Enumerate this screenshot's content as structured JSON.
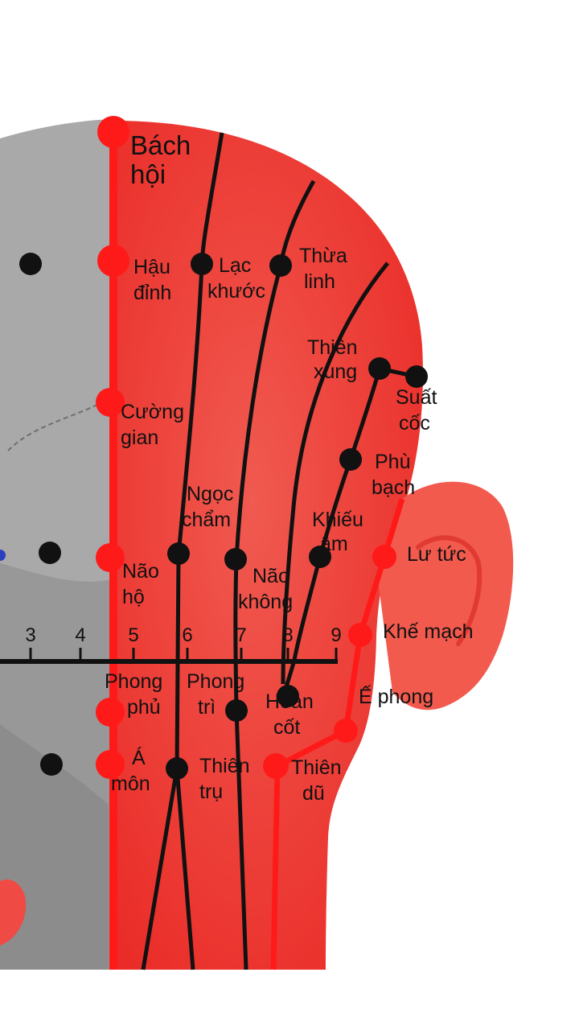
{
  "colors": {
    "head_red": "#ef2a2a",
    "head_red_light": "#f25a4e",
    "skull_gray": "#a9a9a9",
    "skull_dark": "#8a8a8a",
    "governor_red": "#ff1a1a",
    "channel_dark": "#111111",
    "point_dark": "#111111",
    "label_text": "#111111"
  },
  "scale": {
    "ticks": [
      "3",
      "4",
      "5",
      "6",
      "7",
      "8",
      "9"
    ]
  },
  "points": [
    {
      "id": "bach-hoi",
      "lines": [
        "Bách",
        "hội"
      ],
      "color": "red"
    },
    {
      "id": "hau-dinh",
      "lines": [
        "Hậu",
        "đỉnh"
      ],
      "color": "red"
    },
    {
      "id": "cuong-gian",
      "lines": [
        "Cường",
        "gian"
      ],
      "color": "red"
    },
    {
      "id": "nao-ho",
      "lines": [
        "Não",
        "hộ"
      ],
      "color": "red"
    },
    {
      "id": "phong-phu",
      "lines": [
        "Phong",
        "phủ"
      ],
      "color": "red"
    },
    {
      "id": "a-mon",
      "lines": [
        "Á",
        "môn"
      ],
      "color": "red"
    },
    {
      "id": "lac-khuoc",
      "lines": [
        "Lạc",
        "khước"
      ],
      "color": "dark"
    },
    {
      "id": "ngoc-cham",
      "lines": [
        "Ngọc",
        "chẩm"
      ],
      "color": "dark"
    },
    {
      "id": "thien-tru",
      "lines": [
        "Thiên",
        "trụ"
      ],
      "color": "dark"
    },
    {
      "id": "thua-linh",
      "lines": [
        "Thừa",
        "linh"
      ],
      "color": "dark"
    },
    {
      "id": "nao-khong",
      "lines": [
        "Não",
        "không"
      ],
      "color": "dark"
    },
    {
      "id": "phong-tri",
      "lines": [
        "Phong",
        "trì"
      ],
      "color": "dark"
    },
    {
      "id": "thien-xung",
      "lines": [
        "Thiên",
        "xung"
      ],
      "color": "dark"
    },
    {
      "id": "suat-coc",
      "lines": [
        "Suất",
        "cốc"
      ],
      "color": "dark"
    },
    {
      "id": "phu-bach",
      "lines": [
        "Phù",
        "bạch"
      ],
      "color": "dark"
    },
    {
      "id": "khieu-am",
      "lines": [
        "Khiếu",
        "âm"
      ],
      "color": "dark"
    },
    {
      "id": "hoan-cot",
      "lines": [
        "Hoàn",
        "cốt"
      ],
      "color": "dark"
    },
    {
      "id": "lu-tuc",
      "lines": [
        "Lư tức"
      ],
      "color": "red"
    },
    {
      "id": "khe-mach",
      "lines": [
        "Khế mạch"
      ],
      "color": "red"
    },
    {
      "id": "e-phong",
      "lines": [
        "Ế phong"
      ],
      "color": "red"
    },
    {
      "id": "thien-du",
      "lines": [
        "Thiên",
        "dũ"
      ],
      "color": "red"
    }
  ]
}
